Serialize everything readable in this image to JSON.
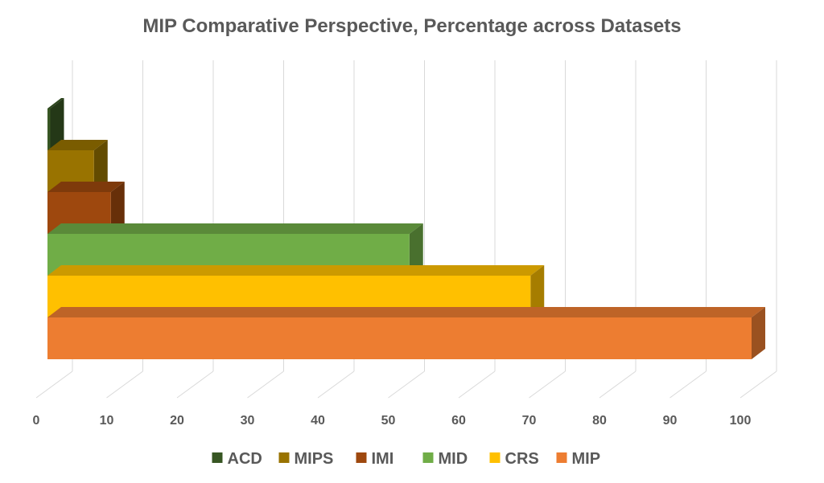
{
  "chart_data": {
    "type": "bar",
    "orientation": "horizontal",
    "style": "3d-clustered",
    "title": "MIP Comparative Perspective, Percentage across Datasets",
    "xlabel": "",
    "ylabel": "",
    "xlim": [
      0,
      100
    ],
    "xticks": [
      0,
      10,
      20,
      30,
      40,
      50,
      60,
      70,
      80,
      90,
      100
    ],
    "grid": true,
    "legend_position": "bottom",
    "series": [
      {
        "name": "ACD",
        "value": 0.4,
        "color": "#375623"
      },
      {
        "name": "MIPS",
        "value": 6.6,
        "color": "#997300"
      },
      {
        "name": "IMI",
        "value": 9,
        "color": "#9E480E"
      },
      {
        "name": "MID",
        "value": 51.4,
        "color": "#70AD47"
      },
      {
        "name": "CRS",
        "value": 68.6,
        "color": "#FFC000"
      },
      {
        "name": "MIP",
        "value": 100,
        "color": "#ED7D31"
      }
    ]
  }
}
